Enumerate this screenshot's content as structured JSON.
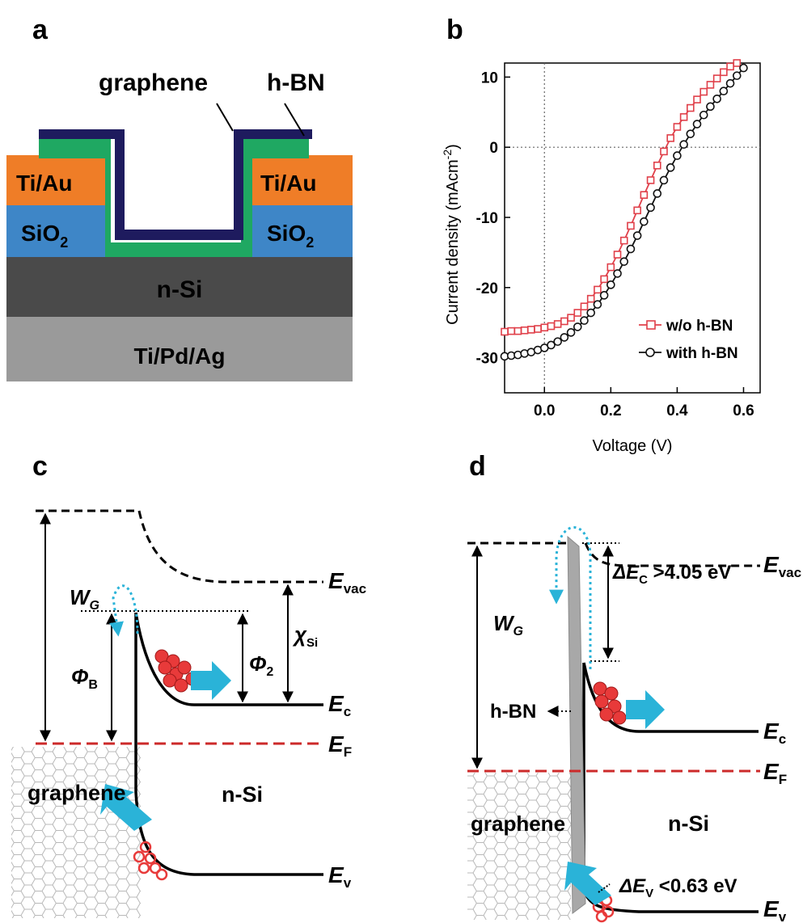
{
  "panels": {
    "a": {
      "letter": "a",
      "labels": {
        "graphene": "graphene",
        "hbn": "h-BN",
        "contact_left": "Ti/Au",
        "contact_right": "Ti/Au",
        "oxide_left": "SiO",
        "oxide_right": "SiO",
        "oxide_sub": "2",
        "substrate": "n-Si",
        "back_contact": "Ti/Pd/Ag"
      },
      "colors": {
        "hbn": "#1e1b5e",
        "graphene": "#1fa862",
        "ti_au": "#ef7d27",
        "sio2": "#3e86c7",
        "n_si": "#4a4a4a",
        "back": "#9a9a9a"
      }
    },
    "b": {
      "letter": "b",
      "ylabel": "Current density  (mAcm",
      "ylabel_sup": "-2",
      "ylabel_close": ")"
    },
    "c": {
      "letter": "c",
      "labels": {
        "wg": "W",
        "wg_sub": "G",
        "phib": "Φ",
        "phib_sub": "B",
        "phi2": "Φ",
        "phi2_sub": "2",
        "chi": "χ",
        "chi_sub": "Si",
        "evac": "E",
        "evac_sub": "vac",
        "ec": "E",
        "ec_sub": "c",
        "ef": "E",
        "ef_sub": "F",
        "ev": "E",
        "ev_sub": "v",
        "graphene": "graphene",
        "nsi": "n-Si"
      }
    },
    "d": {
      "letter": "d",
      "labels": {
        "wg": "W",
        "wg_sub": "G",
        "dec": "ΔE",
        "dec_sub": "C",
        "dec_val": " >4.05 eV",
        "dev": "ΔE",
        "dev_sub": "V",
        "dev_val": " <0.63 eV",
        "hbn": "h-BN",
        "evac": "E",
        "evac_sub": "vac",
        "ec": "E",
        "ec_sub": "c",
        "ef": "E",
        "ef_sub": "F",
        "ev": "E",
        "ev_sub": "v",
        "graphene": "graphene",
        "nsi": "n-Si"
      }
    }
  },
  "chart_data": {
    "type": "line",
    "xlabel": "Voltage (V)",
    "ylabel": "Current density (mAcm-2)",
    "xlim": [
      -0.12,
      0.65
    ],
    "ylim": [
      -35,
      12
    ],
    "xticks": [
      0.0,
      0.2,
      0.4,
      0.6
    ],
    "yticks": [
      10,
      0,
      -10,
      -20,
      -30
    ],
    "xtick_labels": [
      "0.0",
      "0.2",
      "0.4",
      "0.6"
    ],
    "ytick_labels": [
      "10",
      "0",
      "-10",
      "-20",
      "-30"
    ],
    "legend_position": "bottom-right",
    "grid": false,
    "series": [
      {
        "name": "w/o h-BN",
        "color": "#e0404a",
        "marker": "square",
        "x": [
          -0.12,
          -0.1,
          -0.08,
          -0.06,
          -0.04,
          -0.02,
          0.0,
          0.02,
          0.04,
          0.06,
          0.08,
          0.1,
          0.12,
          0.14,
          0.16,
          0.18,
          0.2,
          0.22,
          0.24,
          0.26,
          0.28,
          0.3,
          0.32,
          0.34,
          0.36,
          0.38,
          0.4,
          0.42,
          0.44,
          0.46,
          0.48,
          0.5,
          0.52,
          0.54,
          0.56,
          0.58
        ],
        "y": [
          -26.3,
          -26.2,
          -26.2,
          -26.1,
          -26.0,
          -25.9,
          -25.7,
          -25.5,
          -25.2,
          -24.8,
          -24.3,
          -23.6,
          -22.7,
          -21.6,
          -20.3,
          -18.8,
          -17.1,
          -15.3,
          -13.3,
          -11.2,
          -9.0,
          -6.8,
          -4.7,
          -2.6,
          -0.6,
          1.3,
          2.9,
          4.3,
          5.6,
          6.8,
          7.9,
          8.9,
          9.8,
          10.7,
          11.5,
          12.0
        ]
      },
      {
        "name": "with h-BN",
        "color": "#111111",
        "marker": "circle",
        "x": [
          -0.12,
          -0.1,
          -0.08,
          -0.06,
          -0.04,
          -0.02,
          0.0,
          0.02,
          0.04,
          0.06,
          0.08,
          0.1,
          0.12,
          0.14,
          0.16,
          0.18,
          0.2,
          0.22,
          0.24,
          0.26,
          0.28,
          0.3,
          0.32,
          0.34,
          0.36,
          0.38,
          0.4,
          0.42,
          0.44,
          0.46,
          0.48,
          0.5,
          0.52,
          0.54,
          0.56,
          0.58,
          0.6
        ],
        "y": [
          -29.8,
          -29.7,
          -29.6,
          -29.4,
          -29.2,
          -28.9,
          -28.6,
          -28.2,
          -27.7,
          -27.1,
          -26.4,
          -25.6,
          -24.7,
          -23.6,
          -22.4,
          -21.1,
          -19.6,
          -18.0,
          -16.3,
          -14.5,
          -12.6,
          -10.6,
          -8.6,
          -6.6,
          -4.7,
          -2.9,
          -1.2,
          0.4,
          1.9,
          3.3,
          4.6,
          5.8,
          6.9,
          8.0,
          9.1,
          10.2,
          11.3
        ]
      }
    ]
  }
}
